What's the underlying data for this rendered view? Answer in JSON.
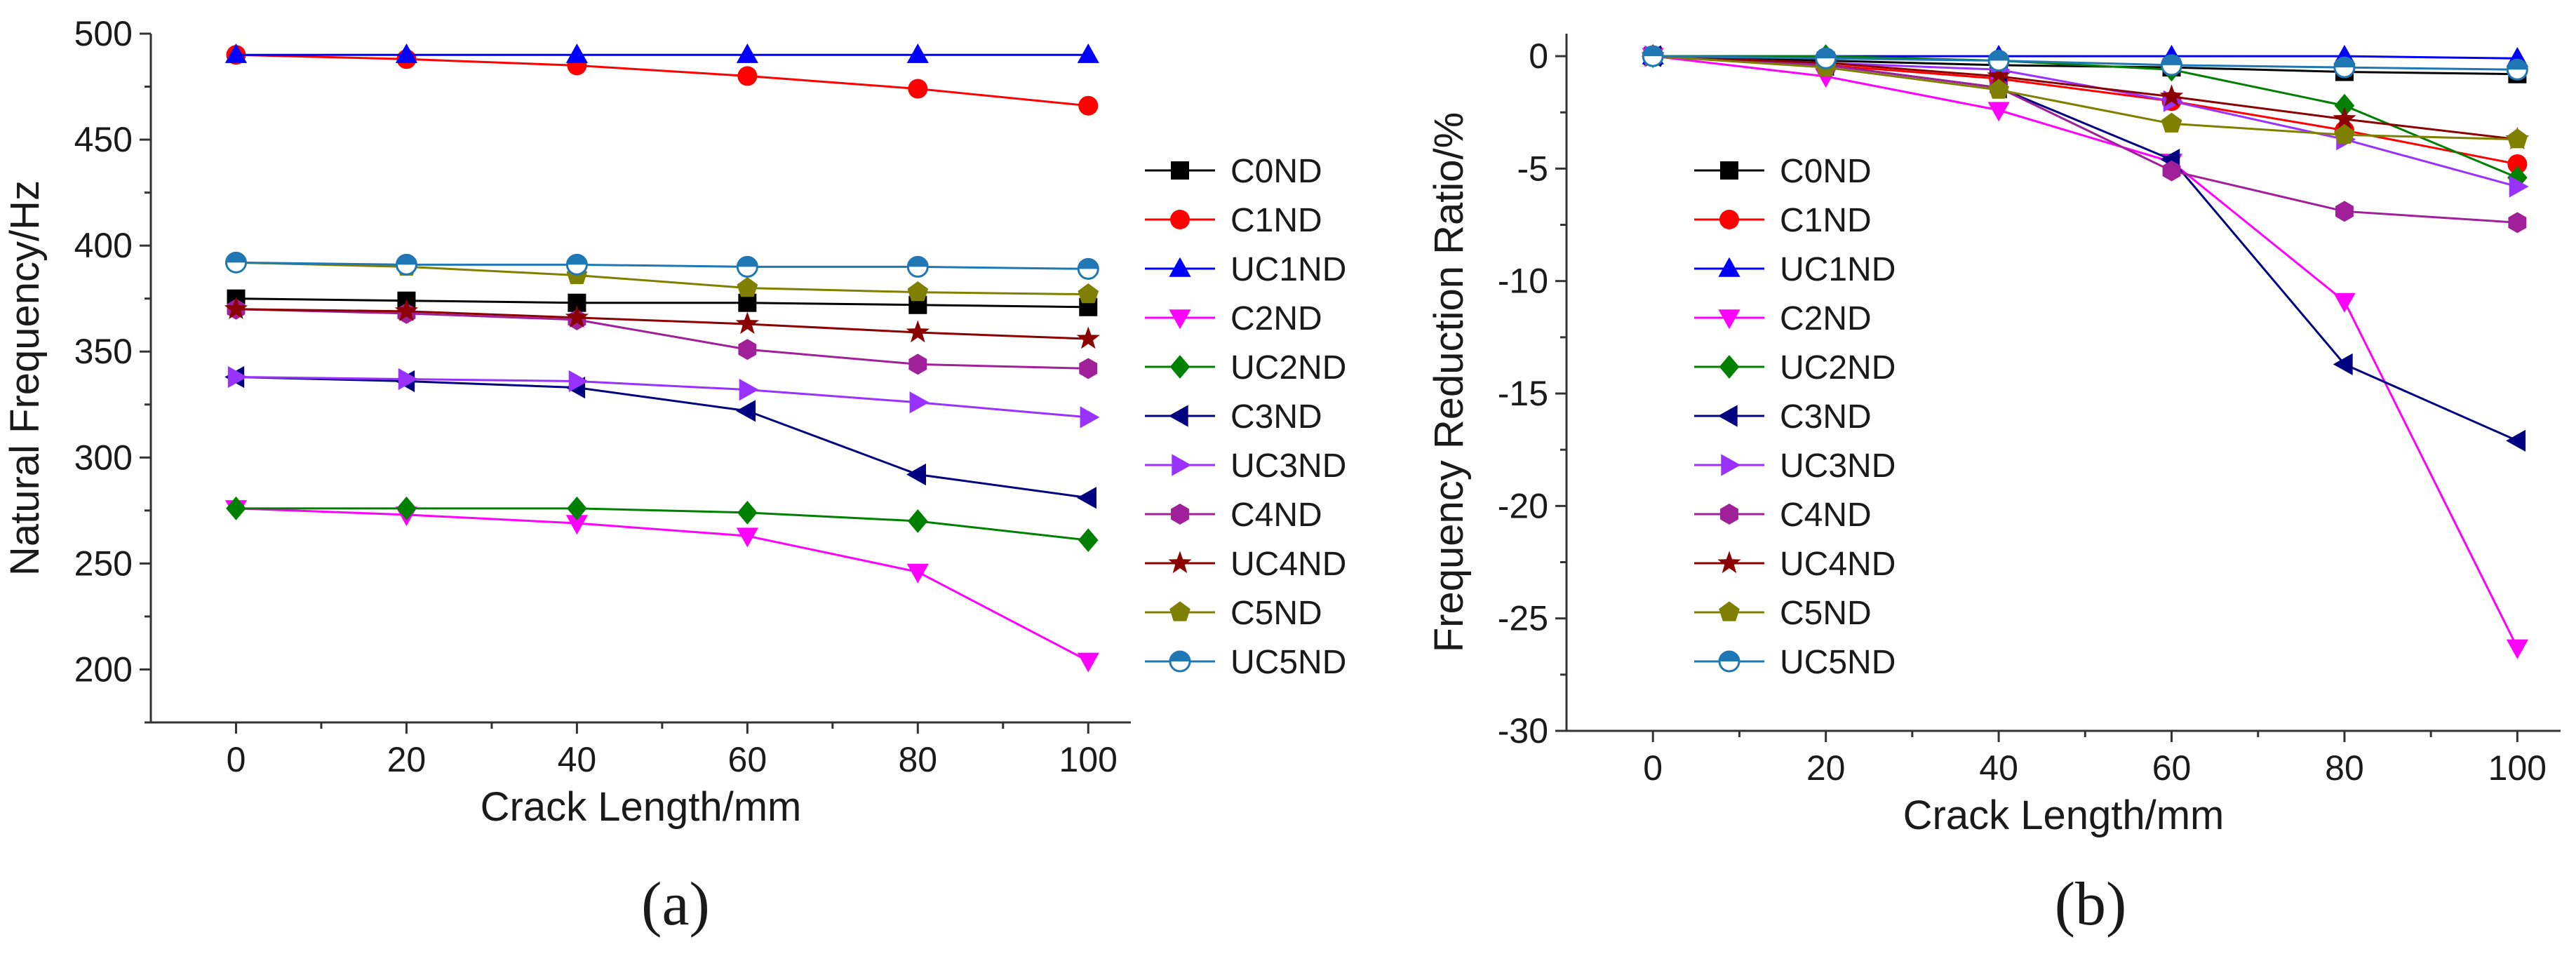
{
  "chart_data": [
    {
      "type": "line",
      "panel": "(a)",
      "xlabel": "Crack Length/mm",
      "ylabel": "Natural Frequency/Hz",
      "xlim": [
        -10,
        105
      ],
      "ylim": [
        175,
        500
      ],
      "xticks": [
        0,
        20,
        40,
        60,
        80,
        100
      ],
      "yticks": [
        200,
        250,
        300,
        350,
        400,
        450,
        500
      ],
      "legend_position": "right",
      "x": [
        0,
        20,
        40,
        60,
        80,
        100
      ],
      "series": [
        {
          "name": "C0ND",
          "color": "#000000",
          "marker": "square",
          "values": [
            375,
            374,
            373,
            373,
            372,
            371
          ]
        },
        {
          "name": "C1ND",
          "color": "#ff0000",
          "marker": "circle",
          "values": [
            490,
            488,
            485,
            480,
            474,
            466
          ]
        },
        {
          "name": "UC1ND",
          "color": "#0000ff",
          "marker": "triangle-up",
          "values": [
            490,
            490,
            490,
            490,
            490,
            490
          ]
        },
        {
          "name": "C2ND",
          "color": "#ff00ff",
          "marker": "triangle-down",
          "values": [
            276,
            273,
            269,
            263,
            246,
            204
          ]
        },
        {
          "name": "UC2ND",
          "color": "#008000",
          "marker": "diamond",
          "values": [
            276,
            276,
            276,
            274,
            270,
            261
          ]
        },
        {
          "name": "C3ND",
          "color": "#000080",
          "marker": "triangle-left",
          "values": [
            338,
            336,
            333,
            322,
            292,
            281
          ]
        },
        {
          "name": "UC3ND",
          "color": "#9932ff",
          "marker": "triangle-right",
          "values": [
            338,
            337,
            336,
            332,
            326,
            319
          ]
        },
        {
          "name": "C4ND",
          "color": "#a0209a",
          "marker": "hexagon",
          "values": [
            370,
            368,
            365,
            351,
            344,
            342
          ]
        },
        {
          "name": "UC4ND",
          "color": "#8b0000",
          "marker": "star",
          "values": [
            370,
            369,
            366,
            363,
            359,
            356
          ]
        },
        {
          "name": "C5ND",
          "color": "#808000",
          "marker": "pentagon",
          "values": [
            392,
            390,
            386,
            380,
            378,
            377
          ]
        },
        {
          "name": "UC5ND",
          "color": "#1f77b4",
          "marker": "half-circle",
          "values": [
            392,
            391,
            391,
            390,
            390,
            389
          ]
        }
      ]
    },
    {
      "type": "line",
      "panel": "(b)",
      "xlabel": "Crack Length/mm",
      "ylabel": "Frequency Reduction Ratio/%",
      "xlim": [
        -10,
        105
      ],
      "ylim": [
        -30,
        1
      ],
      "xticks": [
        0,
        20,
        40,
        60,
        80,
        100
      ],
      "yticks": [
        -30,
        -25,
        -20,
        -15,
        -10,
        -5,
        0
      ],
      "legend_position": "left",
      "x": [
        0,
        20,
        40,
        60,
        80,
        100
      ],
      "series": [
        {
          "name": "C0ND",
          "color": "#000000",
          "marker": "square",
          "values": [
            0,
            -0.2,
            -0.4,
            -0.5,
            -0.7,
            -0.8
          ]
        },
        {
          "name": "C1ND",
          "color": "#ff0000",
          "marker": "circle",
          "values": [
            0,
            -0.4,
            -1.0,
            -2.0,
            -3.3,
            -4.8
          ]
        },
        {
          "name": "UC1ND",
          "color": "#0000ff",
          "marker": "triangle-up",
          "values": [
            0,
            0,
            0,
            0,
            0,
            -0.1
          ]
        },
        {
          "name": "C2ND",
          "color": "#ff00ff",
          "marker": "triangle-down",
          "values": [
            0,
            -0.9,
            -2.4,
            -4.7,
            -10.9,
            -26.3
          ]
        },
        {
          "name": "UC2ND",
          "color": "#008000",
          "marker": "diamond",
          "values": [
            0,
            0,
            -0.2,
            -0.6,
            -2.2,
            -5.4
          ]
        },
        {
          "name": "C3ND",
          "color": "#000080",
          "marker": "triangle-left",
          "values": [
            0,
            -0.4,
            -1.4,
            -4.6,
            -13.7,
            -17.1
          ]
        },
        {
          "name": "UC3ND",
          "color": "#9932ff",
          "marker": "triangle-right",
          "values": [
            0,
            -0.3,
            -0.6,
            -2.0,
            -3.7,
            -5.8
          ]
        },
        {
          "name": "C4ND",
          "color": "#a0209a",
          "marker": "hexagon",
          "values": [
            0,
            -0.4,
            -1.4,
            -5.1,
            -6.9,
            -7.4
          ]
        },
        {
          "name": "UC4ND",
          "color": "#8b0000",
          "marker": "star",
          "values": [
            0,
            -0.3,
            -0.9,
            -1.8,
            -2.8,
            -3.7
          ]
        },
        {
          "name": "C5ND",
          "color": "#808000",
          "marker": "pentagon",
          "values": [
            0,
            -0.5,
            -1.5,
            -3.0,
            -3.5,
            -3.7
          ]
        },
        {
          "name": "UC5ND",
          "color": "#1f77b4",
          "marker": "half-circle",
          "values": [
            0,
            -0.1,
            -0.2,
            -0.4,
            -0.5,
            -0.6
          ]
        }
      ]
    }
  ]
}
